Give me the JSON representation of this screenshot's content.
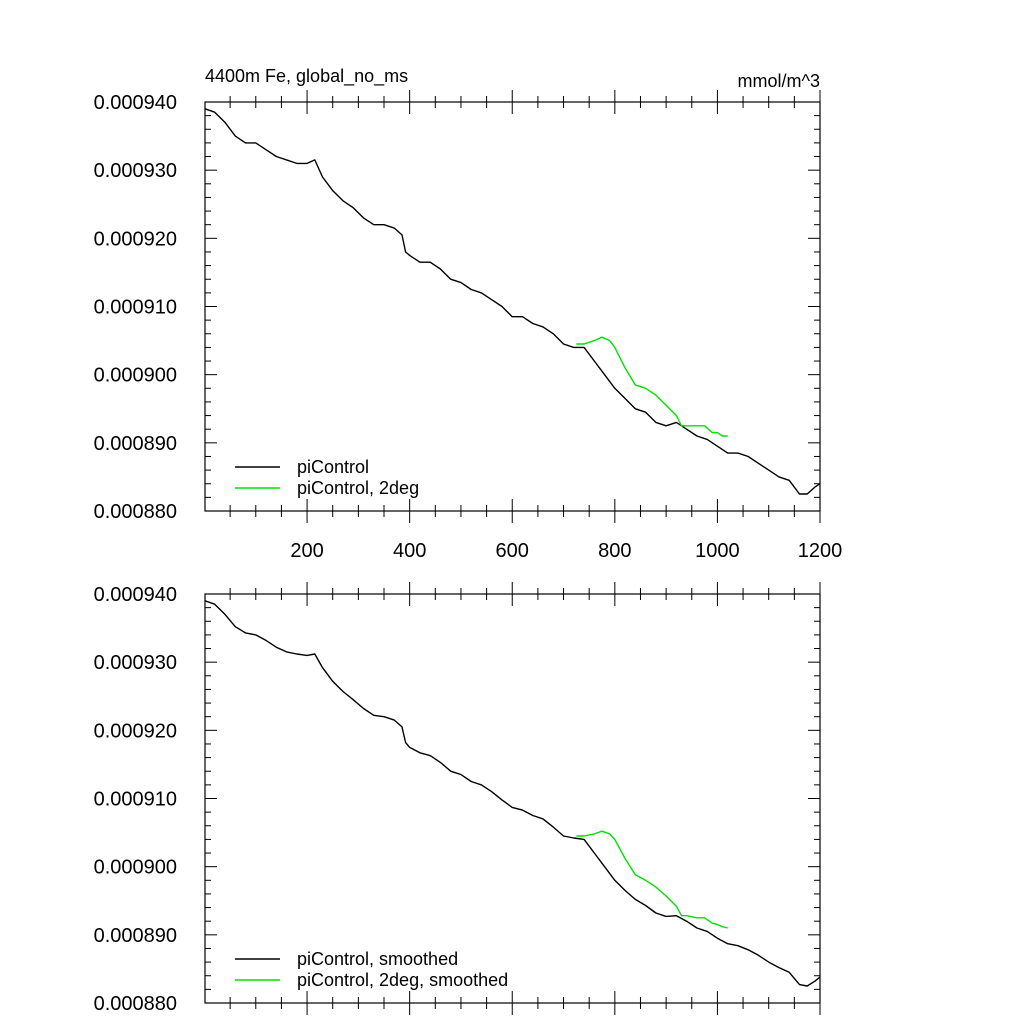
{
  "chart_data": [
    {
      "type": "line",
      "title": "4400m Fe, global_no_ms",
      "units": "mmol/m^3",
      "xlim": [
        1,
        1200
      ],
      "ylim": [
        0.00088,
        0.00094
      ],
      "x_ticks": [
        "200",
        "400",
        "600",
        "800",
        "1000",
        "1200"
      ],
      "y_ticks": [
        "0.000880",
        "0.000890",
        "0.000900",
        "0.000910",
        "0.000920",
        "0.000930",
        "0.000940"
      ],
      "show_x_tick_labels": true,
      "legend_position": "bottom-left",
      "series": [
        {
          "name": "piControl",
          "color": "#000000",
          "x": [
            1,
            20,
            40,
            60,
            80,
            100,
            120,
            140,
            160,
            180,
            200,
            215,
            230,
            250,
            270,
            290,
            310,
            330,
            350,
            370,
            385,
            392,
            400,
            420,
            440,
            460,
            480,
            500,
            520,
            540,
            560,
            580,
            600,
            620,
            640,
            660,
            680,
            700,
            720,
            740,
            760,
            780,
            800,
            820,
            840,
            860,
            880,
            900,
            920,
            940,
            960,
            980,
            1000,
            1020,
            1040,
            1060,
            1080,
            1100,
            1120,
            1140,
            1160,
            1175,
            1190,
            1200
          ],
          "values": [
            0.000939,
            0.0009385,
            0.000937,
            0.000935,
            0.000934,
            0.000934,
            0.000933,
            0.000932,
            0.0009315,
            0.000931,
            0.000931,
            0.0009315,
            0.000929,
            0.000927,
            0.0009255,
            0.0009245,
            0.000923,
            0.000922,
            0.000922,
            0.0009215,
            0.0009205,
            0.000918,
            0.0009175,
            0.0009165,
            0.0009165,
            0.0009155,
            0.000914,
            0.0009135,
            0.0009125,
            0.000912,
            0.000911,
            0.00091,
            0.0009085,
            0.0009085,
            0.0009075,
            0.000907,
            0.000906,
            0.0009045,
            0.000904,
            0.000904,
            0.000902,
            0.0009,
            0.000898,
            0.0008965,
            0.000895,
            0.0008945,
            0.000893,
            0.0008925,
            0.000893,
            0.000892,
            0.000891,
            0.0008905,
            0.0008895,
            0.0008885,
            0.0008885,
            0.000888,
            0.000887,
            0.000886,
            0.000885,
            0.0008845,
            0.0008825,
            0.0008825,
            0.0008835,
            0.000884
          ]
        },
        {
          "name": "piControl, 2deg",
          "color": "#00e000",
          "x": [
            725,
            740,
            760,
            775,
            790,
            800,
            820,
            840,
            860,
            880,
            900,
            920,
            930,
            940,
            960,
            975,
            990,
            1000,
            1010,
            1020
          ],
          "values": [
            0.0009045,
            0.0009045,
            0.000905,
            0.0009055,
            0.000905,
            0.000904,
            0.000901,
            0.0008985,
            0.000898,
            0.000897,
            0.0008955,
            0.000894,
            0.0008925,
            0.0008925,
            0.0008925,
            0.0008925,
            0.0008915,
            0.0008915,
            0.000891,
            0.000891
          ]
        }
      ]
    },
    {
      "type": "line",
      "title": "",
      "units": "",
      "xlim": [
        1,
        1200
      ],
      "ylim": [
        0.00088,
        0.00094
      ],
      "x_ticks": [],
      "y_ticks": [
        "0.000880",
        "0.000890",
        "0.000900",
        "0.000910",
        "0.000920",
        "0.000930",
        "0.000940"
      ],
      "show_x_tick_labels": false,
      "legend_position": "bottom-left",
      "series": [
        {
          "name": "piControl, smoothed",
          "color": "#000000",
          "x": [
            1,
            20,
            40,
            60,
            80,
            100,
            120,
            140,
            160,
            180,
            200,
            215,
            230,
            250,
            270,
            290,
            310,
            330,
            350,
            370,
            385,
            392,
            400,
            420,
            440,
            460,
            480,
            500,
            520,
            540,
            560,
            580,
            600,
            620,
            640,
            660,
            680,
            700,
            720,
            740,
            760,
            780,
            800,
            820,
            840,
            860,
            880,
            900,
            920,
            940,
            960,
            980,
            1000,
            1020,
            1040,
            1060,
            1080,
            1100,
            1120,
            1140,
            1160,
            1175,
            1190,
            1200
          ],
          "values": [
            0.000939,
            0.0009385,
            0.000937,
            0.0009352,
            0.0009343,
            0.000934,
            0.0009332,
            0.0009322,
            0.0009315,
            0.0009312,
            0.000931,
            0.0009312,
            0.0009292,
            0.0009272,
            0.0009257,
            0.0009245,
            0.0009232,
            0.0009222,
            0.000922,
            0.0009215,
            0.0009205,
            0.0009182,
            0.0009175,
            0.0009167,
            0.0009163,
            0.0009153,
            0.000914,
            0.0009135,
            0.0009125,
            0.000912,
            0.000911,
            0.0009098,
            0.0009087,
            0.0009083,
            0.0009075,
            0.000907,
            0.0009058,
            0.0009045,
            0.0009042,
            0.000904,
            0.000902,
            0.0009,
            0.000898,
            0.0008965,
            0.0008952,
            0.0008943,
            0.0008932,
            0.0008927,
            0.0008928,
            0.000892,
            0.000891,
            0.0008905,
            0.0008895,
            0.0008887,
            0.0008884,
            0.0008878,
            0.000887,
            0.000886,
            0.0008852,
            0.0008845,
            0.0008827,
            0.0008825,
            0.0008832,
            0.0008838
          ]
        },
        {
          "name": "piControl, 2deg, smoothed",
          "color": "#00e000",
          "x": [
            725,
            740,
            760,
            775,
            790,
            800,
            820,
            840,
            860,
            880,
            900,
            920,
            930,
            940,
            960,
            975,
            990,
            1000,
            1010,
            1020
          ],
          "values": [
            0.0009045,
            0.0009045,
            0.0009048,
            0.0009052,
            0.0009048,
            0.000904,
            0.0009012,
            0.0008988,
            0.000898,
            0.000897,
            0.0008957,
            0.0008942,
            0.0008928,
            0.0008928,
            0.0008925,
            0.0008925,
            0.0008917,
            0.0008915,
            0.0008912,
            0.000891
          ]
        }
      ]
    }
  ]
}
